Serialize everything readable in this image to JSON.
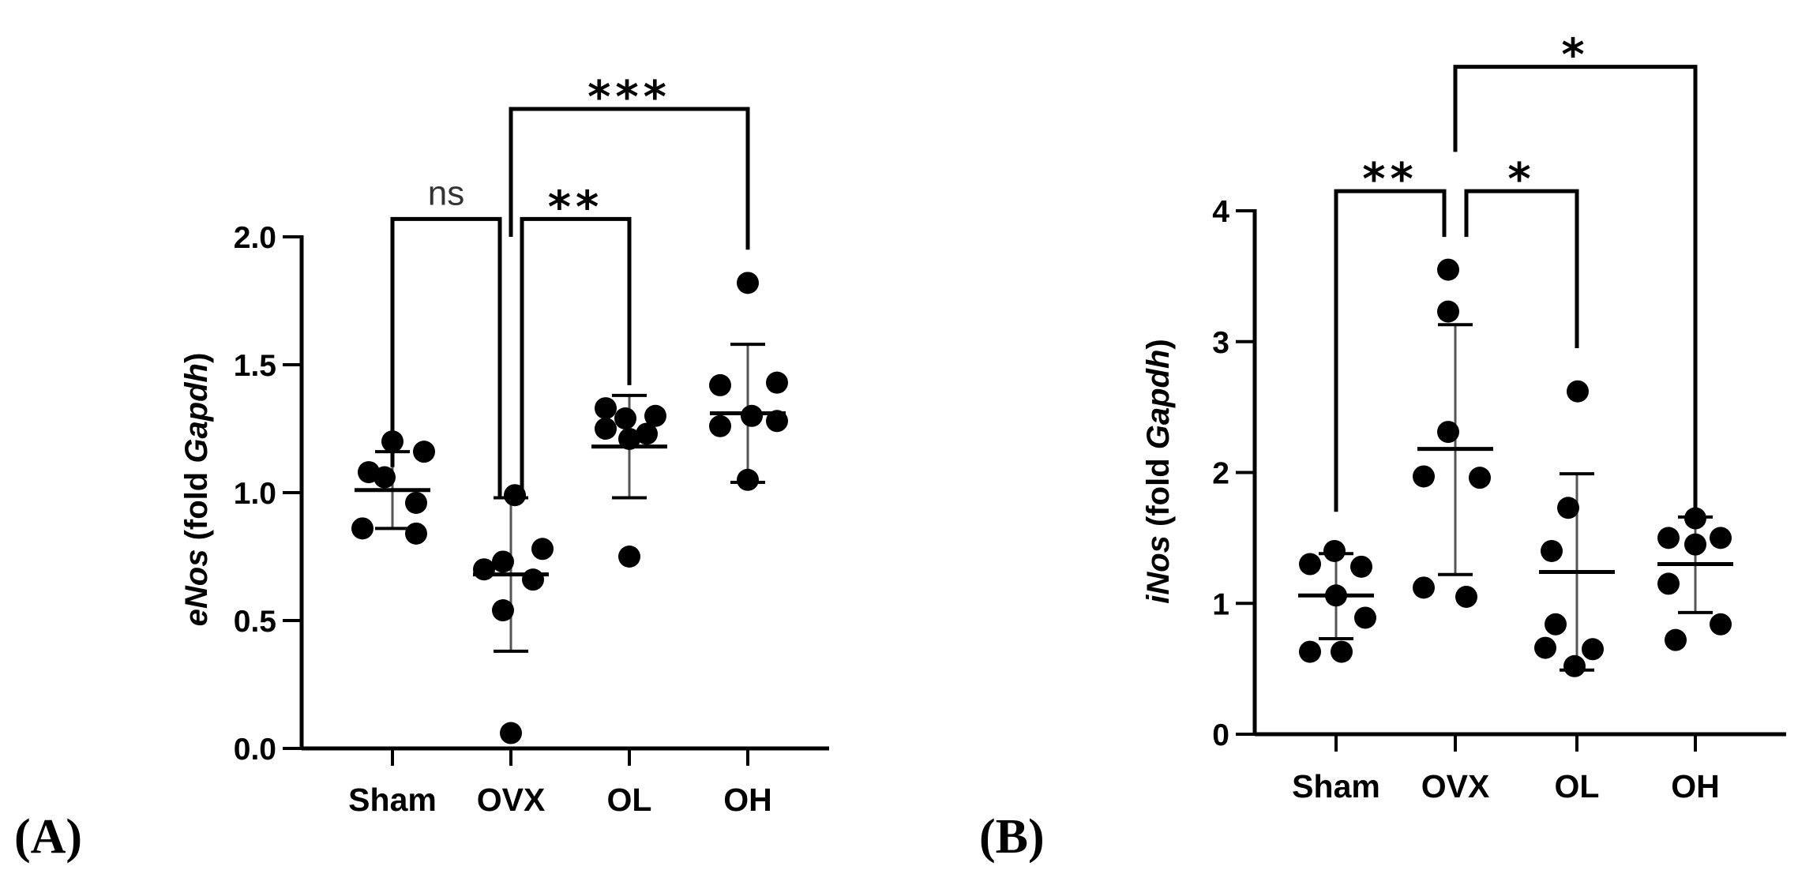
{
  "chart_data": [
    {
      "panel": "(A)",
      "type": "scatter",
      "ylabel_gene": "eNos",
      "ylabel_rest": " (fold ",
      "ylabel_ref": "Gapdh",
      "ylabel_close": ")",
      "ylim": [
        0.0,
        2.0
      ],
      "yticks": [
        0.0,
        0.5,
        1.0,
        1.5,
        2.0
      ],
      "ytick_labels": [
        "0.0",
        "0.5",
        "1.0",
        "1.5",
        "2.0"
      ],
      "categories": [
        "Sham",
        "OVX",
        "OL",
        "OH"
      ],
      "groups": [
        {
          "name": "Sham",
          "points": [
            1.2,
            1.16,
            1.08,
            1.06,
            0.96,
            0.86,
            0.84
          ],
          "mean": 1.01,
          "sd_low": 0.86,
          "sd_high": 1.16
        },
        {
          "name": "OVX",
          "points": [
            0.99,
            0.78,
            0.73,
            0.7,
            0.66,
            0.54,
            0.06
          ],
          "mean": 0.68,
          "sd_low": 0.38,
          "sd_high": 0.98
        },
        {
          "name": "OL",
          "points": [
            1.33,
            1.3,
            1.29,
            1.25,
            1.23,
            1.21,
            0.75
          ],
          "mean": 1.18,
          "sd_low": 0.98,
          "sd_high": 1.38
        },
        {
          "name": "OH",
          "points": [
            1.82,
            1.42,
            1.43,
            1.3,
            1.26,
            1.28,
            1.05
          ],
          "mean": 1.31,
          "sd_low": 1.04,
          "sd_high": 1.58
        }
      ],
      "comparisons": [
        {
          "from": "Sham",
          "to": "OVX",
          "label": "ns",
          "y": 2.07,
          "ends": [
            1.1,
            0.98
          ]
        },
        {
          "from": "OVX",
          "to": "OL",
          "label": "**",
          "y": 2.07,
          "ends": [
            0.98,
            1.42
          ]
        },
        {
          "from": "OVX",
          "to": "OH",
          "label": "***",
          "y": 2.5,
          "ends": [
            2.0,
            1.95
          ]
        }
      ]
    },
    {
      "panel": "(B)",
      "type": "scatter",
      "ylabel_gene": "iNos",
      "ylabel_rest": " (fold ",
      "ylabel_ref": "Gapdh",
      "ylabel_close": ")",
      "ylim": [
        0,
        4
      ],
      "yticks": [
        0,
        1,
        2,
        3,
        4
      ],
      "ytick_labels": [
        "0",
        "1",
        "2",
        "3",
        "4"
      ],
      "categories": [
        "Sham",
        "OVX",
        "OL",
        "OH"
      ],
      "groups": [
        {
          "name": "Sham",
          "points": [
            1.4,
            1.3,
            1.28,
            1.06,
            0.89,
            0.63,
            0.63
          ],
          "mean": 1.06,
          "sd_low": 0.73,
          "sd_high": 1.38
        },
        {
          "name": "OVX",
          "points": [
            3.55,
            3.23,
            2.31,
            1.97,
            1.96,
            1.12,
            1.05
          ],
          "mean": 2.18,
          "sd_low": 1.22,
          "sd_high": 3.13
        },
        {
          "name": "OL",
          "points": [
            2.62,
            1.73,
            1.4,
            0.84,
            0.66,
            0.65,
            0.52
          ],
          "mean": 1.24,
          "sd_low": 0.49,
          "sd_high": 1.99
        },
        {
          "name": "OH",
          "points": [
            1.65,
            1.5,
            1.5,
            1.45,
            1.15,
            0.84,
            0.72
          ],
          "mean": 1.3,
          "sd_low": 0.93,
          "sd_high": 1.66
        }
      ],
      "comparisons": [
        {
          "from": "Sham",
          "to": "OVX",
          "label": "**",
          "y": 4.15,
          "ends": [
            1.7,
            3.8
          ]
        },
        {
          "from": "OVX",
          "to": "OL",
          "label": "*",
          "y": 4.15,
          "ends": [
            3.8,
            2.95
          ]
        },
        {
          "from": "OVX",
          "to": "OH",
          "label": "*",
          "y": 5.1,
          "ends": [
            4.45,
            1.7
          ]
        }
      ]
    }
  ]
}
